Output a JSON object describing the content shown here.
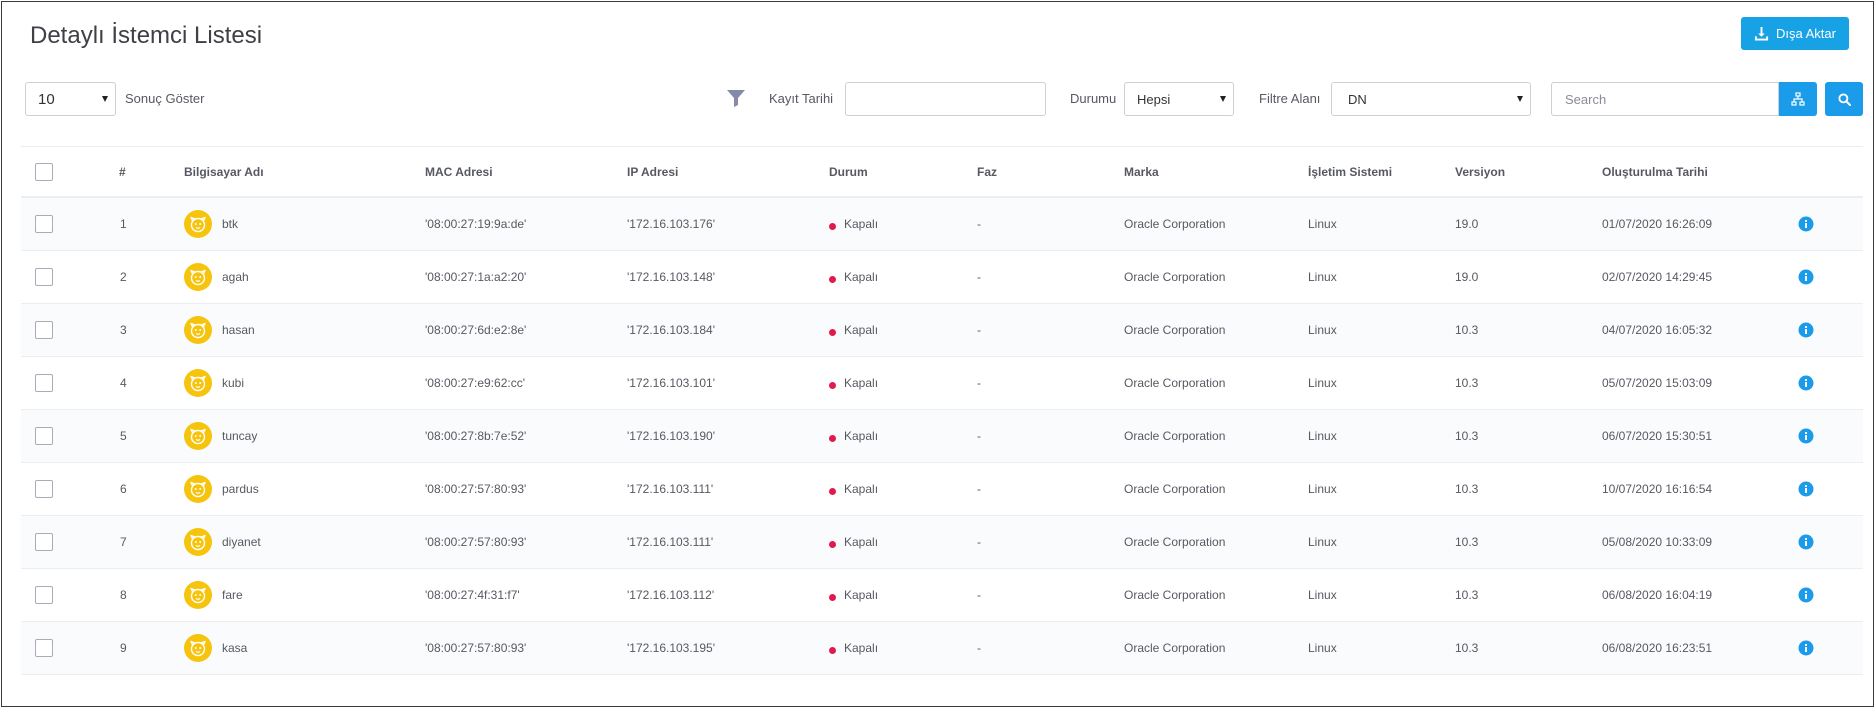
{
  "page": {
    "title": "Detaylı İstemci Listesi",
    "export_label": "Dışa Aktar"
  },
  "toolbar": {
    "page_size": "10",
    "page_size_label": "Sonuç Göster",
    "date_label": "Kayıt Tarihi",
    "date_value": "",
    "status_label": "Durumu",
    "status_value": "Hepsi",
    "filter_label": "Filtre Alanı",
    "filter_value": "DN",
    "search_placeholder": "Search",
    "search_value": ""
  },
  "table": {
    "columns": [
      "#",
      "Bilgisayar Adı",
      "MAC Adresi",
      "IP Adresi",
      "Durum",
      "Faz",
      "Marka",
      "İşletim Sistemi",
      "Versiyon",
      "Oluşturulma Tarihi"
    ],
    "rows": [
      {
        "num": "1",
        "name": "btk",
        "mac": "'08:00:27:19:9a:de'",
        "ip": "'172.16.103.176'",
        "status": "Kapalı",
        "faz": "-",
        "brand": "Oracle Corporation",
        "os": "Linux",
        "version": "19.0",
        "created": "01/07/2020 16:26:09"
      },
      {
        "num": "2",
        "name": "agah",
        "mac": "'08:00:27:1a:a2:20'",
        "ip": "'172.16.103.148'",
        "status": "Kapalı",
        "faz": "-",
        "brand": "Oracle Corporation",
        "os": "Linux",
        "version": "19.0",
        "created": "02/07/2020 14:29:45"
      },
      {
        "num": "3",
        "name": "hasan",
        "mac": "'08:00:27:6d:e2:8e'",
        "ip": "'172.16.103.184'",
        "status": "Kapalı",
        "faz": "-",
        "brand": "Oracle Corporation",
        "os": "Linux",
        "version": "10.3",
        "created": "04/07/2020 16:05:32"
      },
      {
        "num": "4",
        "name": "kubi",
        "mac": "'08:00:27:e9:62:cc'",
        "ip": "'172.16.103.101'",
        "status": "Kapalı",
        "faz": "-",
        "brand": "Oracle Corporation",
        "os": "Linux",
        "version": "10.3",
        "created": "05/07/2020 15:03:09"
      },
      {
        "num": "5",
        "name": "tuncay",
        "mac": "'08:00:27:8b:7e:52'",
        "ip": "'172.16.103.190'",
        "status": "Kapalı",
        "faz": "-",
        "brand": "Oracle Corporation",
        "os": "Linux",
        "version": "10.3",
        "created": "06/07/2020 15:30:51"
      },
      {
        "num": "6",
        "name": "pardus",
        "mac": "'08:00:27:57:80:93'",
        "ip": "'172.16.103.111'",
        "status": "Kapalı",
        "faz": "-",
        "brand": "Oracle Corporation",
        "os": "Linux",
        "version": "10.3",
        "created": "10/07/2020 16:16:54"
      },
      {
        "num": "7",
        "name": "diyanet",
        "mac": "'08:00:27:57:80:93'",
        "ip": "'172.16.103.111'",
        "status": "Kapalı",
        "faz": "-",
        "brand": "Oracle Corporation",
        "os": "Linux",
        "version": "10.3",
        "created": "05/08/2020 10:33:09"
      },
      {
        "num": "8",
        "name": "fare",
        "mac": "'08:00:27:4f:31:f7'",
        "ip": "'172.16.103.112'",
        "status": "Kapalı",
        "faz": "-",
        "brand": "Oracle Corporation",
        "os": "Linux",
        "version": "10.3",
        "created": "06/08/2020 16:04:19"
      },
      {
        "num": "9",
        "name": "kasa",
        "mac": "'08:00:27:57:80:93'",
        "ip": "'172.16.103.195'",
        "status": "Kapalı",
        "faz": "-",
        "brand": "Oracle Corporation",
        "os": "Linux",
        "version": "10.3",
        "created": "06/08/2020 16:23:51"
      }
    ]
  },
  "colors": {
    "accent": "#1a9cea",
    "status_off": "#e11a4e",
    "avatar_bg": "#f6c40d"
  },
  "icons": {
    "export": "download-icon",
    "filter": "filter-icon",
    "sitemap": "sitemap-icon",
    "search": "search-icon",
    "avatar": "pardus-logo-icon",
    "info": "info-icon"
  }
}
